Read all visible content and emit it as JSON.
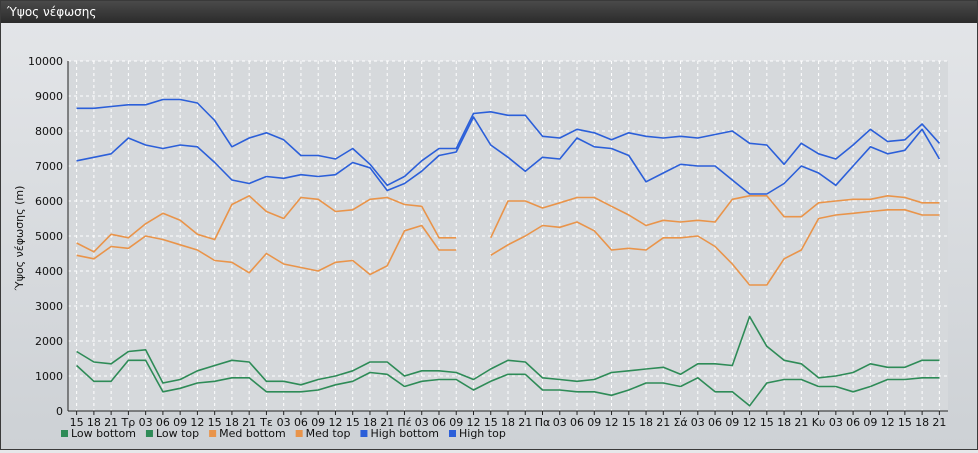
{
  "window": {
    "title": "Ύψος νέφωσης"
  },
  "chart_data": {
    "type": "line",
    "title": "",
    "ylabel": "Ύψος νέφωσης (m)",
    "xlabel": "",
    "ylim": [
      0,
      10000
    ],
    "yticks": [
      0,
      1000,
      2000,
      3000,
      4000,
      5000,
      6000,
      7000,
      8000,
      9000,
      10000
    ],
    "grid": true,
    "legend_position": "bottom-left",
    "x": [
      "15",
      "18",
      "21",
      "Τρ",
      "03",
      "06",
      "09",
      "12",
      "15",
      "18",
      "21",
      "Τε",
      "03",
      "06",
      "09",
      "12",
      "15",
      "18",
      "21",
      "Πέ",
      "03",
      "06",
      "09",
      "12",
      "15",
      "18",
      "21",
      "Πα",
      "03",
      "06",
      "09",
      "12",
      "15",
      "18",
      "21",
      "Σά",
      "03",
      "06",
      "09",
      "12",
      "15",
      "18",
      "21",
      "Κυ",
      "03",
      "06",
      "09",
      "12",
      "15",
      "18",
      "21"
    ],
    "series": [
      {
        "name": "Low bottom",
        "color": "#2e8b57",
        "values": [
          1300,
          850,
          850,
          1450,
          1450,
          550,
          650,
          800,
          850,
          950,
          950,
          550,
          550,
          550,
          600,
          750,
          850,
          1100,
          1050,
          700,
          850,
          900,
          900,
          600,
          850,
          1050,
          1050,
          600,
          600,
          550,
          550,
          450,
          600,
          800,
          800,
          700,
          950,
          550,
          550,
          150,
          800,
          900,
          900,
          700,
          700,
          550,
          700,
          900,
          900,
          950,
          950
        ]
      },
      {
        "name": "Low top",
        "color": "#2e8b57",
        "values": [
          1700,
          1400,
          1350,
          1700,
          1750,
          800,
          900,
          1150,
          1300,
          1450,
          1400,
          850,
          850,
          750,
          900,
          1000,
          1150,
          1400,
          1400,
          1000,
          1150,
          1150,
          1100,
          900,
          1200,
          1450,
          1400,
          950,
          900,
          850,
          900,
          1100,
          1150,
          1200,
          1250,
          1050,
          1350,
          1350,
          1300,
          2700,
          1850,
          1450,
          1350,
          950,
          1000,
          1100,
          1350,
          1250,
          1250,
          1450,
          1450
        ]
      },
      {
        "name": "Med bottom",
        "color": "#e9944a",
        "values": [
          4450,
          4350,
          4700,
          4650,
          5000,
          4900,
          4750,
          4600,
          4300,
          4250,
          3950,
          4500,
          4200,
          4100,
          4000,
          4250,
          4300,
          3900,
          4150,
          5150,
          5300,
          4600,
          4600,
          null,
          4450,
          4750,
          5000,
          5300,
          5250,
          5400,
          5150,
          4600,
          4650,
          4600,
          4950,
          4950,
          5000,
          4700,
          4200,
          3600,
          3600,
          4350,
          4600,
          5500,
          5600,
          5650,
          5700,
          5750,
          5750,
          5600,
          5600
        ]
      },
      {
        "name": "Med top",
        "color": "#e9944a",
        "values": [
          4800,
          4550,
          5050,
          4950,
          5350,
          5650,
          5450,
          5050,
          4900,
          5900,
          6150,
          5700,
          5500,
          6100,
          6050,
          5700,
          5750,
          6050,
          6100,
          5900,
          5850,
          4950,
          4950,
          null,
          4950,
          6000,
          6000,
          5800,
          5950,
          6100,
          6100,
          5850,
          5600,
          5300,
          5450,
          5400,
          5450,
          5400,
          6050,
          6150,
          6150,
          5550,
          5550,
          5950,
          6000,
          6050,
          6050,
          6150,
          6100,
          5950,
          5950
        ]
      },
      {
        "name": "High bottom",
        "color": "#2b5fd9",
        "values": [
          7150,
          7250,
          7350,
          7800,
          7600,
          7500,
          7600,
          7550,
          7100,
          6600,
          6500,
          6700,
          6650,
          6750,
          6700,
          6750,
          7100,
          6950,
          6300,
          6500,
          6850,
          7300,
          7400,
          8400,
          7600,
          7250,
          6850,
          7250,
          7200,
          7800,
          7550,
          7500,
          7300,
          6550,
          6800,
          7050,
          7000,
          7000,
          6600,
          6200,
          6200,
          6500,
          7000,
          6800,
          6450,
          7000,
          7550,
          7350,
          7450,
          8050,
          7200
        ]
      },
      {
        "name": "High top",
        "color": "#2b5fd9",
        "values": [
          8650,
          8650,
          8700,
          8750,
          8750,
          8900,
          8900,
          8800,
          8300,
          7550,
          7800,
          7950,
          7750,
          7300,
          7300,
          7200,
          7500,
          7050,
          6450,
          6700,
          7150,
          7500,
          7500,
          8500,
          8550,
          8450,
          8450,
          7850,
          7800,
          8050,
          7950,
          7750,
          7950,
          7850,
          7800,
          7850,
          7800,
          7900,
          8000,
          7650,
          7600,
          7050,
          7650,
          7350,
          7200,
          7600,
          8050,
          7700,
          7750,
          8200,
          7650
        ]
      }
    ]
  }
}
